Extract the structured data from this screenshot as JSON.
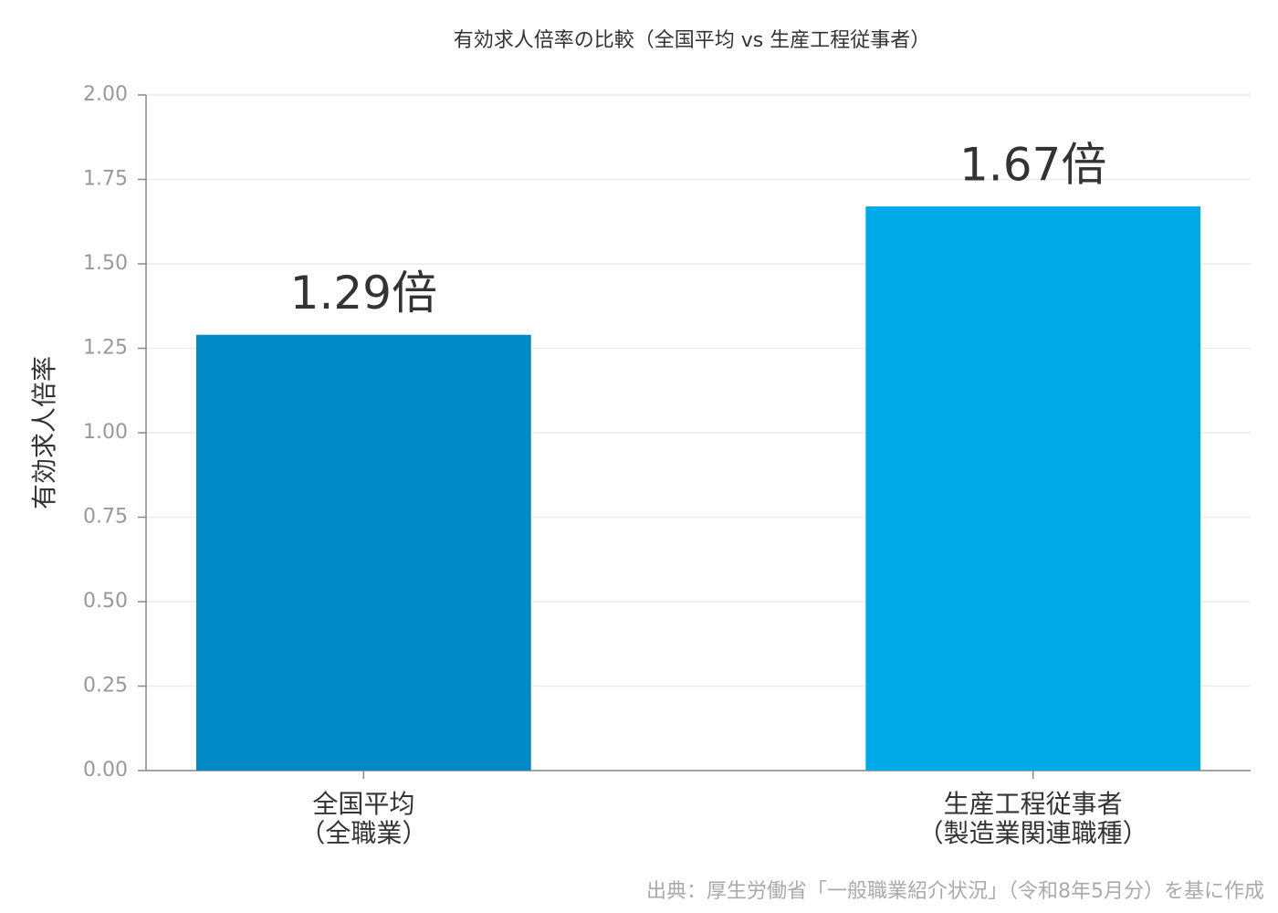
{
  "chart_data": {
    "type": "bar",
    "title": "有効求人倍率の比較（全国平均 vs 生産工程従事者）",
    "ylabel": "有効求人倍率",
    "categories": [
      [
        "全国平均",
        "（全職業）"
      ],
      [
        "生産工程従事者",
        "（製造業関連職種）"
      ]
    ],
    "values": [
      1.29,
      1.67
    ],
    "value_labels": [
      "1.29倍",
      "1.67倍"
    ],
    "colors": [
      "#0089c4",
      "#00a9e8"
    ],
    "ylim": [
      0,
      2
    ],
    "yticks": [
      {
        "value": 0,
        "label": "0.00"
      },
      {
        "value": 0.25,
        "label": "0.25"
      },
      {
        "value": 0.5,
        "label": "0.50"
      },
      {
        "value": 0.75,
        "label": "0.75"
      },
      {
        "value": 1,
        "label": "1.00"
      },
      {
        "value": 1.25,
        "label": "1.25"
      },
      {
        "value": 1.5,
        "label": "1.50"
      },
      {
        "value": 1.75,
        "label": "1.75"
      },
      {
        "value": 2,
        "label": "2.00"
      }
    ],
    "grid": true,
    "source": "出典：厚生労働省「一般職業紹介状況」（令和8年5月分）を基に作成"
  }
}
